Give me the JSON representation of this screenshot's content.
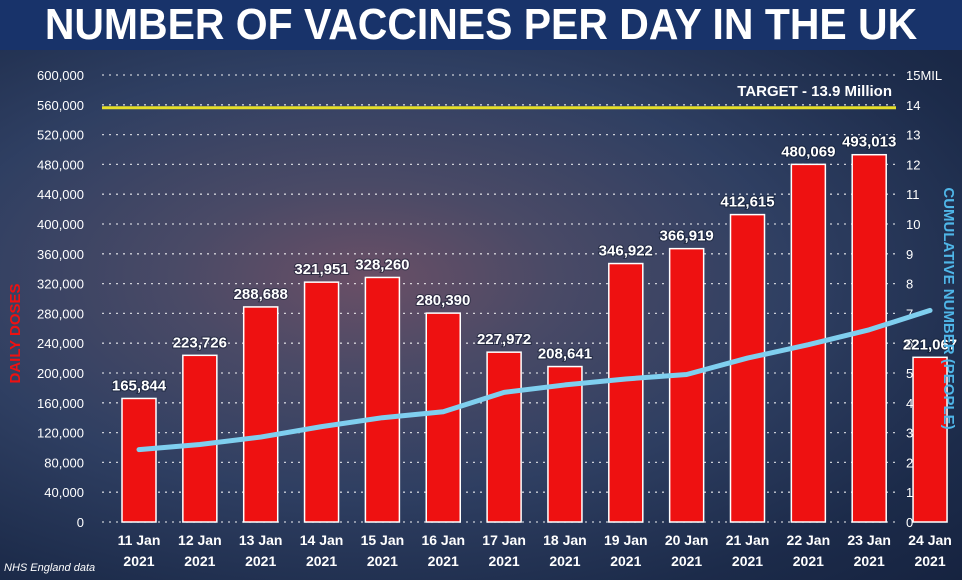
{
  "title": "NUMBER OF VACCINES PER DAY IN THE UK",
  "source": "NHS England data",
  "colors": {
    "bar": "#ee1111",
    "bar_edge": "#ffffff",
    "line": "#7fcfef",
    "target": "#e6df2a",
    "title_band": "#18336a",
    "right_axis_label": "#4fb6e8",
    "left_axis_label": "#ee1111"
  },
  "chart_data": {
    "type": "bar",
    "categories": [
      [
        "11 Jan",
        "2021"
      ],
      [
        "12 Jan",
        "2021"
      ],
      [
        "13 Jan",
        "2021"
      ],
      [
        "14 Jan",
        "2021"
      ],
      [
        "15 Jan",
        "2021"
      ],
      [
        "16 Jan",
        "2021"
      ],
      [
        "17 Jan",
        "2021"
      ],
      [
        "18 Jan",
        "2021"
      ],
      [
        "19 Jan",
        "2021"
      ],
      [
        "20 Jan",
        "2021"
      ],
      [
        "21 Jan",
        "2021"
      ],
      [
        "22 Jan",
        "2021"
      ],
      [
        "23 Jan",
        "2021"
      ],
      [
        "24 Jan",
        "2021"
      ]
    ],
    "values": [
      165844,
      223726,
      288688,
      321951,
      328260,
      280390,
      227972,
      208641,
      346922,
      366919,
      412615,
      480069,
      493013,
      221067
    ],
    "value_labels": [
      "165,844",
      "223,726",
      "288,688",
      "321,951",
      "328,260",
      "280,390",
      "227,972",
      "208,641",
      "346,922",
      "366,919",
      "412,615",
      "480,069",
      "493,013",
      "221,067"
    ],
    "ylabel": "DAILY DOSES",
    "ylim": [
      0,
      600000
    ],
    "yticks": [
      "0",
      "40,000",
      "80,000",
      "120,000",
      "160,000",
      "200,000",
      "240,000",
      "280,000",
      "320,000",
      "360,000",
      "400,000",
      "440,000",
      "480,000",
      "520,000",
      "560,000",
      "600,000"
    ],
    "y2label": "CUMULATIVE NUMBER (PEOPLE)",
    "y2lim": [
      0,
      15
    ],
    "y2ticks": [
      "0",
      "1",
      "2",
      "3",
      "4",
      "5",
      "6",
      "7",
      "8",
      "9",
      "10",
      "11",
      "12",
      "13",
      "14",
      "15MIL"
    ],
    "cumulative": [
      2.43,
      2.6,
      2.85,
      3.2,
      3.5,
      3.7,
      4.35,
      4.6,
      4.8,
      4.95,
      5.5,
      5.95,
      6.45,
      7.1
    ],
    "target": {
      "value": 13.9,
      "label": "TARGET - 13.9 Million"
    },
    "grid": true
  }
}
